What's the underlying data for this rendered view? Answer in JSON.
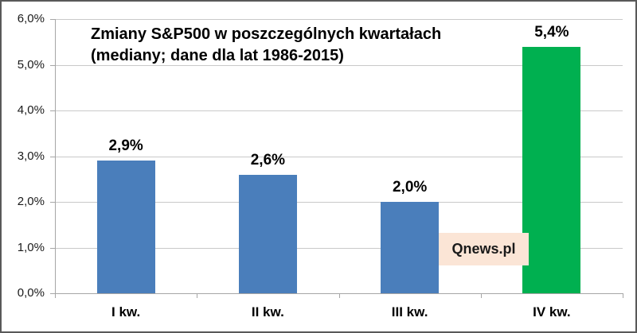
{
  "chart_data": {
    "type": "bar",
    "title_line1": "Zmiany S&P500 w poszczególnych kwartałach",
    "title_line2": "(mediany; dane dla lat 1986-2015)",
    "categories": [
      "I kw.",
      "II kw.",
      "III kw.",
      "IV kw."
    ],
    "values": [
      2.9,
      2.6,
      2.0,
      5.4
    ],
    "value_labels": [
      "2,9%",
      "2,6%",
      "2,0%",
      "5,4%"
    ],
    "y_tick_labels": [
      "0,0%",
      "1,0%",
      "2,0%",
      "3,0%",
      "4,0%",
      "5,0%",
      "6,0%"
    ],
    "y_tick_values": [
      0,
      1,
      2,
      3,
      4,
      5,
      6
    ],
    "ylim": [
      0,
      6
    ],
    "grid": true,
    "legend": "none",
    "bar_colors": [
      "#4a7ebb",
      "#4a7ebb",
      "#4a7ebb",
      "#00b050"
    ]
  },
  "watermark": {
    "label": "Qnews.pl",
    "background": "#fbe5d6"
  },
  "colors": {
    "bar_blue": "#4a7ebb",
    "bar_green": "#00b050",
    "gridline": "#c9c9c9",
    "axis": "#a6a6a6",
    "frame_border": "#595959",
    "background": "#ffffff",
    "text": "#000000"
  }
}
